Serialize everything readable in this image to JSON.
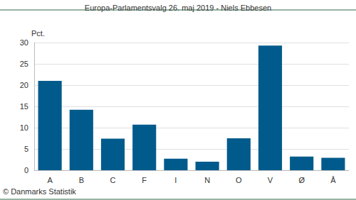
{
  "chart_data": {
    "type": "bar",
    "title": "Europa-Parlamentsvalg 26. maj 2019 - Niels Ebbesen",
    "ylabel": "Pct.",
    "annotations": [
      "© Danmarks Statistik"
    ],
    "categories": [
      "A",
      "B",
      "C",
      "F",
      "I",
      "N",
      "O",
      "V",
      "Ø",
      "Å"
    ],
    "values": [
      21.0,
      14.2,
      7.4,
      10.7,
      2.7,
      2.0,
      7.5,
      29.3,
      3.2,
      2.9
    ],
    "color": "#005b8c",
    "ylim": [
      0,
      30
    ],
    "yticks": [
      0,
      5,
      10,
      15,
      20,
      25,
      30
    ],
    "grid": true
  }
}
